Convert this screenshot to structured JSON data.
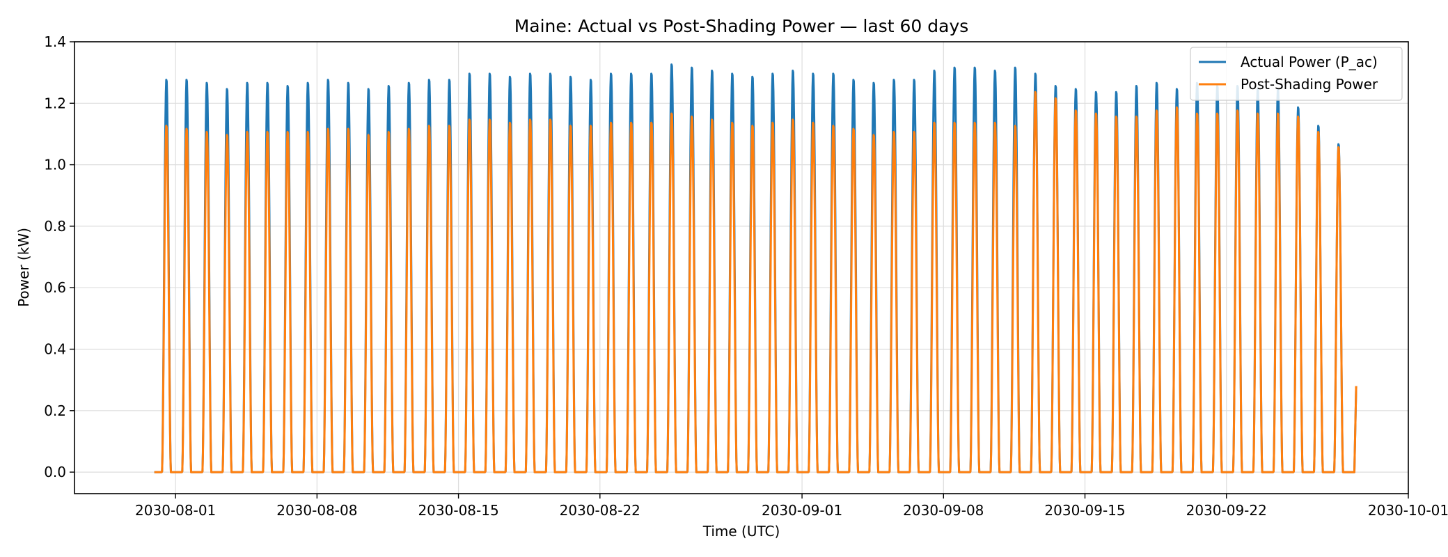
{
  "chart_data": {
    "type": "line",
    "title": "Maine: Actual vs Post-Shading Power — last 60 days",
    "xlabel": "Time (UTC)",
    "ylabel": "Power (kW)",
    "x_start": "2030-07-31",
    "x_end": "2030-09-28",
    "xlim": [
      "2030-07-27",
      "2030-10-01"
    ],
    "ylim": [
      -0.07,
      1.4
    ],
    "y_ticks": [
      0.0,
      0.2,
      0.4,
      0.6,
      0.8,
      1.0,
      1.2,
      1.4
    ],
    "y_tick_labels": [
      "0.0",
      "0.2",
      "0.4",
      "0.6",
      "0.8",
      "1.0",
      "1.2",
      "1.4"
    ],
    "x_ticks": [
      "2030-08-01",
      "2030-08-08",
      "2030-08-15",
      "2030-08-22",
      "2030-09-01",
      "2030-09-08",
      "2030-09-15",
      "2030-09-22",
      "2030-10-01"
    ],
    "grid": true,
    "legend": "top-right",
    "series": [
      {
        "name": "Actual Power (P_ac)",
        "color": "#1f77b4",
        "daily_peaks": [
          1.28,
          1.28,
          1.27,
          1.25,
          1.27,
          1.27,
          1.26,
          1.27,
          1.28,
          1.27,
          1.25,
          1.26,
          1.27,
          1.28,
          1.28,
          1.3,
          1.3,
          1.29,
          1.3,
          1.3,
          1.29,
          1.28,
          1.3,
          1.3,
          1.3,
          1.33,
          1.32,
          1.31,
          1.3,
          1.29,
          1.3,
          1.31,
          1.3,
          1.3,
          1.28,
          1.27,
          1.28,
          1.28,
          1.31,
          1.32,
          1.32,
          1.31,
          1.32,
          1.3,
          1.26,
          1.25,
          1.24,
          1.24,
          1.26,
          1.27,
          1.25,
          1.27,
          1.26,
          1.26,
          1.25,
          1.25,
          1.19,
          1.13,
          1.07
        ]
      },
      {
        "name": "Post-Shading Power",
        "color": "#ff7f0e",
        "daily_peaks": [
          1.13,
          1.12,
          1.11,
          1.1,
          1.11,
          1.11,
          1.11,
          1.11,
          1.12,
          1.12,
          1.1,
          1.11,
          1.12,
          1.13,
          1.13,
          1.15,
          1.15,
          1.14,
          1.15,
          1.15,
          1.13,
          1.13,
          1.14,
          1.14,
          1.14,
          1.17,
          1.16,
          1.15,
          1.14,
          1.13,
          1.14,
          1.15,
          1.14,
          1.13,
          1.12,
          1.1,
          1.11,
          1.11,
          1.14,
          1.14,
          1.14,
          1.14,
          1.13,
          1.24,
          1.22,
          1.18,
          1.17,
          1.16,
          1.16,
          1.18,
          1.19,
          1.17,
          1.17,
          1.18,
          1.17,
          1.17,
          1.16,
          1.11,
          1.06
        ]
      }
    ],
    "final_point": {
      "date": "2030-09-28",
      "Actual Power (P_ac)": 0.28,
      "Post-Shading Power": 0.28
    }
  }
}
